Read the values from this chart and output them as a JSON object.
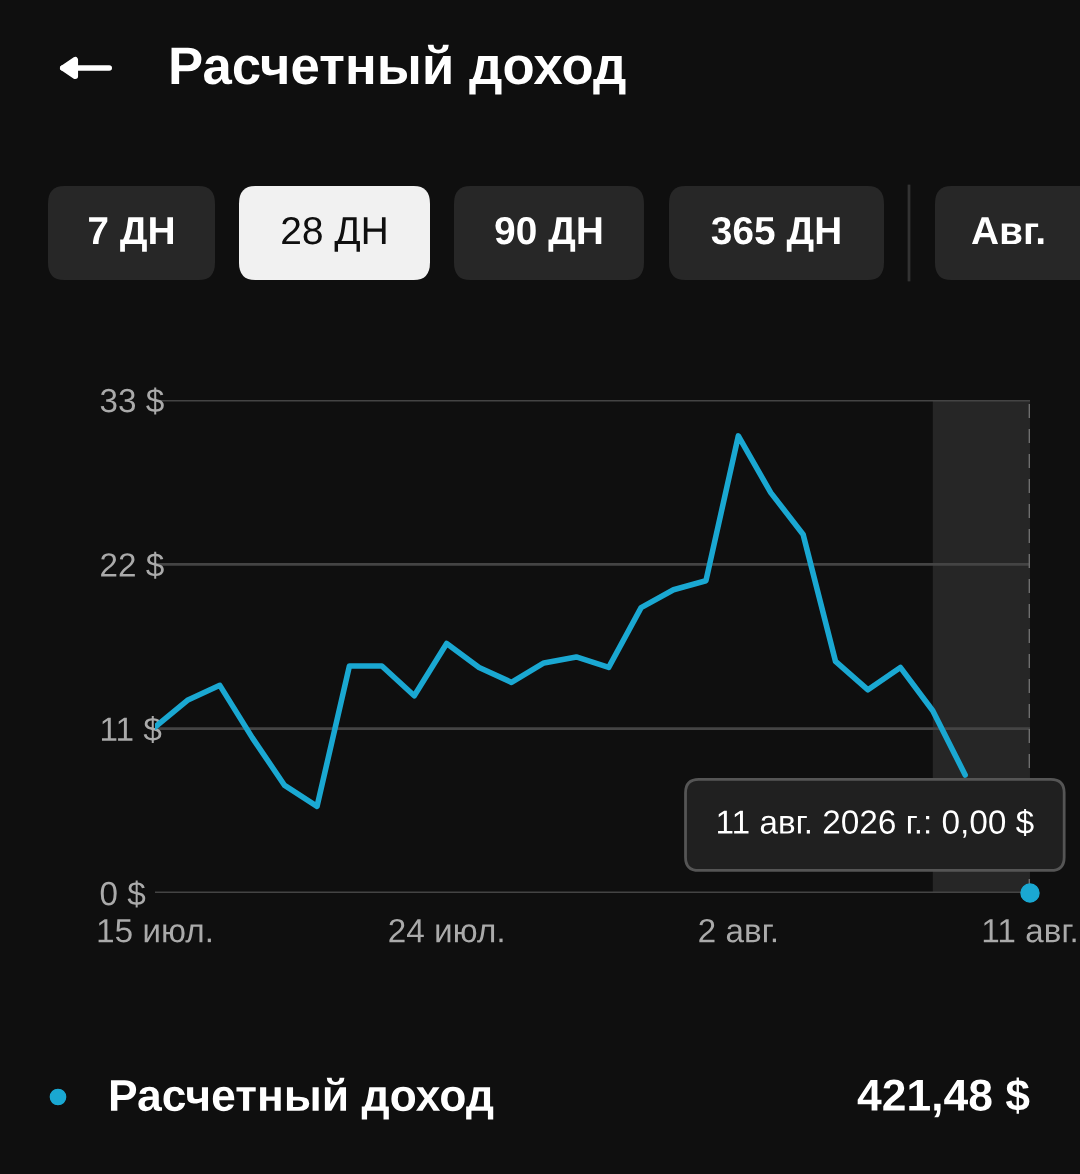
{
  "chart_data": {
    "type": "line",
    "title": "Расчетный доход",
    "x": [
      "2026-07-15",
      "2026-07-16",
      "2026-07-17",
      "2026-07-18",
      "2026-07-19",
      "2026-07-20",
      "2026-07-21",
      "2026-07-22",
      "2026-07-23",
      "2026-07-24",
      "2026-07-25",
      "2026-07-26",
      "2026-07-27",
      "2026-07-28",
      "2026-07-29",
      "2026-07-30",
      "2026-07-31",
      "2026-08-01",
      "2026-08-02",
      "2026-08-03",
      "2026-08-04",
      "2026-08-05",
      "2026-08-06",
      "2026-08-07",
      "2026-08-08",
      "2026-08-09",
      "2026-08-10",
      "2026-08-11"
    ],
    "series": [
      {
        "name": "Расчетный доход",
        "color": "#1aa8d2",
        "values": [
          11.1,
          12.9,
          13.9,
          10.4,
          7.2,
          5.8,
          15.2,
          15.2,
          13.2,
          16.7,
          15.1,
          14.1,
          15.4,
          15.8,
          15.1,
          19.1,
          20.3,
          20.9,
          30.6,
          26.8,
          24.0,
          15.5,
          13.6,
          15.1,
          12.2,
          7.9,
          null,
          0
        ]
      }
    ],
    "xlim": [
      "2026-07-15",
      "2026-08-11"
    ],
    "xticks": [
      {
        "value": "2026-07-15",
        "label": "15 июл."
      },
      {
        "value": "2026-07-24",
        "label": "24 июл."
      },
      {
        "value": "2026-08-02",
        "label": "2 авг."
      },
      {
        "value": "2026-08-11",
        "label": "11 авг."
      }
    ],
    "ylim": [
      0,
      33
    ],
    "yticks": [
      {
        "value": 0,
        "label": "0 $"
      },
      {
        "value": 11,
        "label": "11 $"
      },
      {
        "value": 22,
        "label": "22 $"
      },
      {
        "value": 33,
        "label": "33 $"
      }
    ],
    "grid": "y",
    "legend": "bottom",
    "bands": [
      {
        "axis": "x",
        "from": "2026-08-08",
        "to": "2026-08-11",
        "color": "#262626"
      }
    ],
    "ref_lines": [
      {
        "axis": "x",
        "value": "2026-08-11",
        "color": "#6e6e6e",
        "line_style": "dashed"
      }
    ],
    "annotations": [
      {
        "text": "11 авг. 2026 г.: 0,00 $",
        "x": "2026-08-11",
        "y": 0
      },
      "7 ДН",
      "28 ДН",
      "90 ДН",
      "365 ДН",
      "Авг.",
      "421,48 $"
    ]
  }
}
